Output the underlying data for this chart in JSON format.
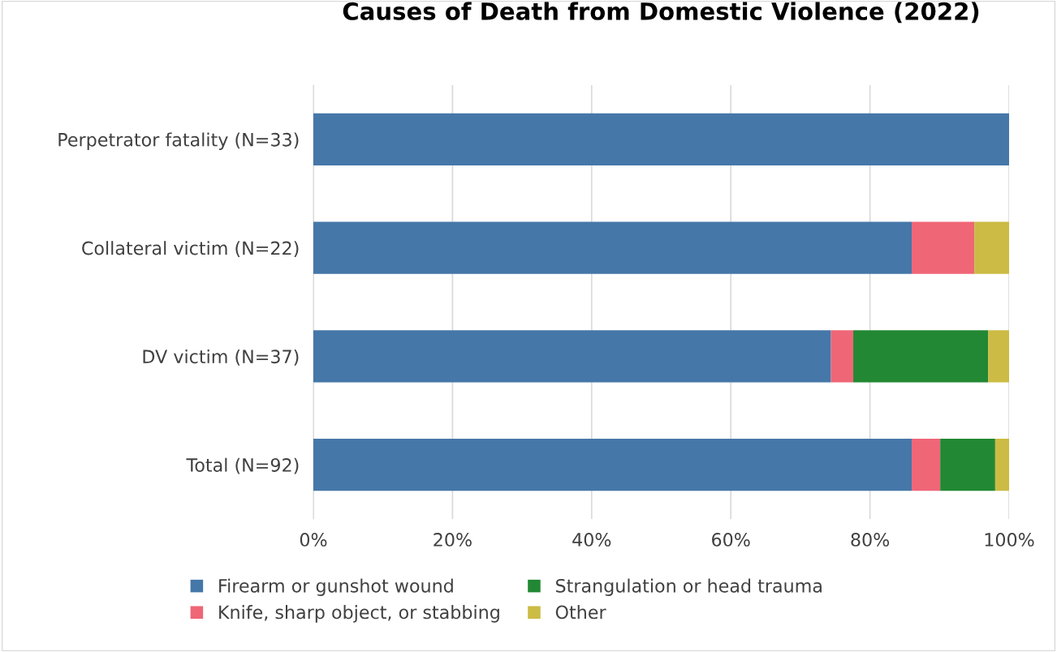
{
  "chart_data": {
    "type": "bar",
    "orientation": "horizontal",
    "stacked": true,
    "title": "Causes of Death from Domestic Violence (2022)",
    "categories": [
      "Perpetrator fatality (N=33)",
      "Collateral victim (N=22)",
      "DV victim (N=37)",
      "Total (N=92)"
    ],
    "series": [
      {
        "name": "Firearm or gunshot wound",
        "color": "#4577a9",
        "values": [
          100,
          86,
          74.4,
          86
        ]
      },
      {
        "name": "Knife, sharp object, or stabbing",
        "color": "#ef6677",
        "values": [
          0,
          9,
          3.2,
          4.1
        ]
      },
      {
        "name": "Strangulation or head trauma",
        "color": "#228833",
        "values": [
          0,
          0,
          19.4,
          7.9
        ]
      },
      {
        "name": "Other",
        "color": "#ccbb44",
        "values": [
          0,
          5,
          3,
          2
        ]
      }
    ],
    "xlim": [
      0,
      100
    ],
    "xticks": [
      {
        "value": 0,
        "label": "0%"
      },
      {
        "value": 20,
        "label": "20%"
      },
      {
        "value": 40,
        "label": "40%"
      },
      {
        "value": 60,
        "label": "60%"
      },
      {
        "value": 80,
        "label": "80%"
      },
      {
        "value": 100,
        "label": "100%"
      }
    ],
    "grid": "x",
    "legend": "bottom"
  }
}
